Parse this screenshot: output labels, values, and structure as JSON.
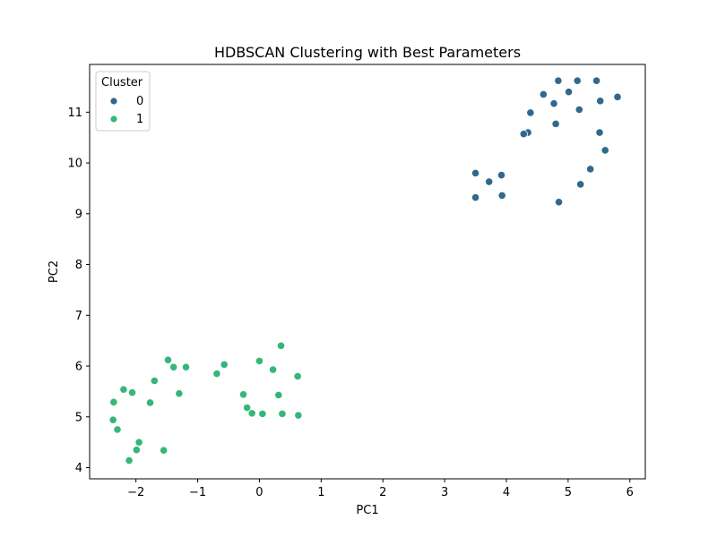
{
  "chart_data": {
    "type": "scatter",
    "title": "HDBSCAN Clustering with Best Parameters",
    "xlabel": "PC1",
    "ylabel": "PC2",
    "xlim": [
      -2.75,
      6.25
    ],
    "ylim": [
      3.78,
      11.94
    ],
    "xticks": [
      -2,
      -1,
      0,
      1,
      2,
      3,
      4,
      5,
      6
    ],
    "yticks": [
      4,
      5,
      6,
      7,
      8,
      9,
      10,
      11
    ],
    "xtick_labels": [
      "−2",
      "−1",
      "0",
      "1",
      "2",
      "3",
      "4",
      "5",
      "6"
    ],
    "ytick_labels": [
      "4",
      "5",
      "6",
      "7",
      "8",
      "9",
      "10",
      "11"
    ],
    "grid": false,
    "legend": {
      "title": "Cluster",
      "placement": "top-left",
      "entries": [
        "0",
        "1"
      ]
    },
    "series": [
      {
        "name": "0",
        "color": "#30688e",
        "points": [
          [
            4.84,
            11.62
          ],
          [
            5.15,
            11.62
          ],
          [
            5.46,
            11.62
          ],
          [
            4.6,
            11.35
          ],
          [
            5.01,
            11.4
          ],
          [
            5.8,
            11.3
          ],
          [
            4.77,
            11.17
          ],
          [
            5.52,
            11.22
          ],
          [
            5.18,
            11.05
          ],
          [
            4.39,
            10.99
          ],
          [
            4.8,
            10.77
          ],
          [
            4.35,
            10.6
          ],
          [
            4.28,
            10.57
          ],
          [
            5.51,
            10.6
          ],
          [
            5.6,
            10.25
          ],
          [
            5.36,
            9.88
          ],
          [
            3.5,
            9.8
          ],
          [
            3.92,
            9.76
          ],
          [
            3.72,
            9.63
          ],
          [
            5.2,
            9.58
          ],
          [
            3.5,
            9.32
          ],
          [
            3.93,
            9.36
          ],
          [
            4.85,
            9.23
          ]
        ]
      },
      {
        "name": "1",
        "color": "#35b779",
        "points": [
          [
            0.35,
            6.4
          ],
          [
            -1.48,
            6.12
          ],
          [
            0.0,
            6.1
          ],
          [
            -1.39,
            5.98
          ],
          [
            -1.19,
            5.98
          ],
          [
            -0.57,
            6.03
          ],
          [
            0.22,
            5.93
          ],
          [
            -0.69,
            5.85
          ],
          [
            0.62,
            5.8
          ],
          [
            -1.7,
            5.71
          ],
          [
            -2.2,
            5.54
          ],
          [
            -2.06,
            5.48
          ],
          [
            -1.3,
            5.46
          ],
          [
            -0.26,
            5.44
          ],
          [
            0.31,
            5.43
          ],
          [
            -2.36,
            5.29
          ],
          [
            -1.77,
            5.28
          ],
          [
            -0.2,
            5.18
          ],
          [
            -0.12,
            5.07
          ],
          [
            0.05,
            5.06
          ],
          [
            0.37,
            5.06
          ],
          [
            0.63,
            5.03
          ],
          [
            -2.37,
            4.94
          ],
          [
            -2.3,
            4.75
          ],
          [
            -1.95,
            4.5
          ],
          [
            -1.99,
            4.35
          ],
          [
            -1.55,
            4.34
          ],
          [
            -2.11,
            4.14
          ]
        ]
      }
    ]
  }
}
